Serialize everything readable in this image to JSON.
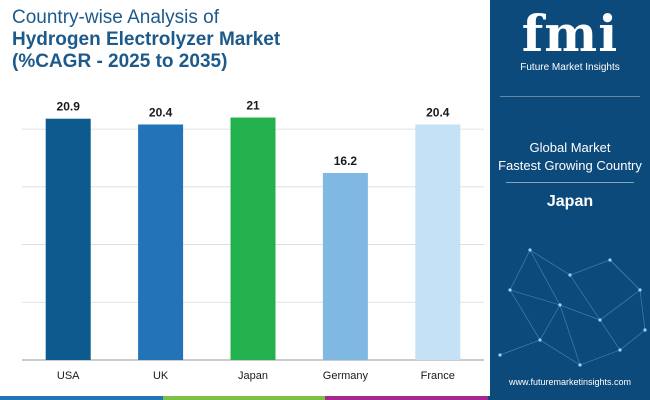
{
  "header": {
    "title_line1": "Country-wise Analysis of",
    "title_line2": "Hydrogen Electrolyzer Market",
    "title_line3": "(%CAGR - 2025 to 2035)"
  },
  "side_panel": {
    "brand_mark": "fmi",
    "brand_name": "Future Market Insights",
    "label_line1": "Global Market",
    "label_line2": "Fastest Growing Country",
    "highlight_country": "Japan",
    "website": "www.futuremarketinsights.com"
  },
  "colors": {
    "title": "#1d5a8c",
    "panel_bg": "#0d4a7c",
    "bar_usa": "#0d5a8f",
    "bar_uk": "#2373b8",
    "bar_japan": "#22b14c",
    "bar_germany": "#7fb8e3",
    "bar_france": "#c4e1f6",
    "bottom_stripes": [
      "#2373b8",
      "#7bc143",
      "#a5278f",
      "#0d4a7c"
    ]
  },
  "chart_data": {
    "type": "bar",
    "categories": [
      "USA",
      "UK",
      "Japan",
      "Germany",
      "France"
    ],
    "values": [
      20.9,
      20.4,
      21,
      16.2,
      20.4
    ],
    "value_labels": [
      "20.9",
      "20.4",
      "21",
      "16.2",
      "20.4"
    ],
    "ylim": [
      0,
      22
    ],
    "grid": true,
    "legend": "none"
  }
}
